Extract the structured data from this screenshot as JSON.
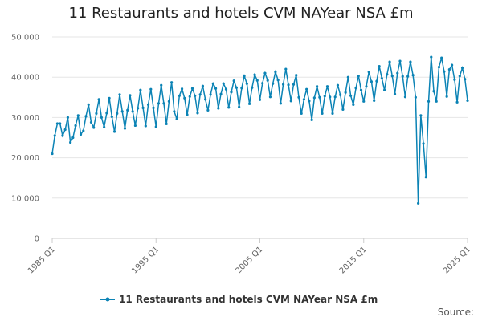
{
  "source_label": "Source:",
  "chart_data": {
    "type": "line",
    "title": "11 Restaurants and hotels CVM NAYear NSA £m",
    "xlabel": "",
    "ylabel": "",
    "x_range": [
      "1985 Q1",
      "2025 Q1"
    ],
    "x_ticks": [
      "1985 Q1",
      "1995 Q1",
      "2005 Q1",
      "2015 Q1",
      "2025 Q1"
    ],
    "y_ticks": [
      "0",
      "10 000",
      "20 000",
      "30 000",
      "40 000",
      "50 000"
    ],
    "y_tick_values": [
      0,
      10000,
      20000,
      30000,
      40000,
      50000
    ],
    "ylim": [
      0,
      50000
    ],
    "grid": true,
    "legend_position": "bottom",
    "colors": {
      "series": "#0b83b5",
      "axis": "#cccccc",
      "grid": "#e6e6e6"
    },
    "series": [
      {
        "name": "11 Restaurants and hotels CVM NAYear NSA £m",
        "start_quarter": "1985 Q1",
        "values": [
          21000,
          25500,
          28500,
          28500,
          25500,
          27000,
          30000,
          23800,
          25000,
          28000,
          30500,
          25800,
          26700,
          30300,
          33200,
          28800,
          27500,
          31000,
          34500,
          30000,
          27600,
          31100,
          34800,
          30200,
          26500,
          31000,
          35700,
          31500,
          27300,
          31800,
          35500,
          31500,
          28000,
          32300,
          36800,
          32400,
          27900,
          33200,
          37000,
          32400,
          27700,
          33500,
          38000,
          33500,
          28400,
          34000,
          38700,
          31500,
          29600,
          35400,
          37100,
          34800,
          30700,
          35200,
          37200,
          35400,
          31100,
          35700,
          37800,
          34500,
          31800,
          35700,
          38400,
          37200,
          32300,
          35800,
          38400,
          37000,
          32500,
          36300,
          39100,
          37400,
          32600,
          37300,
          40300,
          38400,
          33400,
          37400,
          40600,
          39200,
          34400,
          38500,
          41000,
          39200,
          35100,
          38400,
          41300,
          39300,
          33500,
          38200,
          42000,
          38100,
          34100,
          38200,
          40500,
          35000,
          31000,
          34500,
          37000,
          34100,
          29400,
          34900,
          37700,
          35000,
          31000,
          35300,
          37700,
          35100,
          31000,
          35100,
          38000,
          35600,
          32000,
          36200,
          40000,
          35400,
          33200,
          37300,
          40300,
          36800,
          34000,
          37700,
          41300,
          38900,
          34200,
          39000,
          42700,
          39700,
          36800,
          40700,
          43800,
          40300,
          35800,
          41000,
          44000,
          40200,
          35100,
          40200,
          43800,
          40500,
          35000,
          8700,
          30500,
          23500,
          15200,
          34000,
          45000,
          36500,
          34000,
          42500,
          44800,
          41400,
          35200,
          41900,
          43000,
          39400,
          33800,
          40300,
          42300,
          39500,
          34200
        ]
      }
    ]
  }
}
